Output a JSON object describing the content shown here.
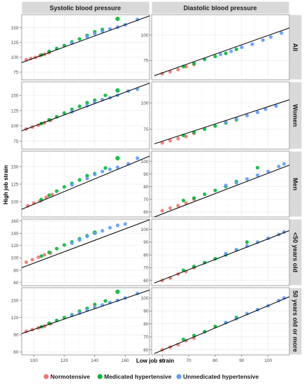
{
  "chart_data": {
    "type": "scatter",
    "xlabel": "Low job strain",
    "ylabel": "High job strain",
    "columns": [
      "Systolic blood pressure",
      "Diastolic blood pressure"
    ],
    "rows": [
      "All",
      "Women",
      "Men",
      "<50 years old",
      "50 years old or more"
    ],
    "x_ticks": [
      [
        100,
        120,
        140,
        160
      ],
      [
        60,
        70,
        80,
        90,
        100
      ]
    ],
    "x_ranges": [
      [
        92,
        176
      ],
      [
        56,
        108
      ]
    ],
    "legend_position": "bottom",
    "legend": [
      {
        "name": "Normotensive",
        "color": "#F8766D"
      },
      {
        "name": "Medicated hypertensive",
        "color": "#00BA38"
      },
      {
        "name": "Unmedicated hypertensive",
        "color": "#619CFF"
      }
    ],
    "panels": [
      {
        "row": 0,
        "col": 0,
        "yticks": [
          75,
          100,
          125,
          150
        ],
        "ylim": [
          62,
          172
        ],
        "line": [
          [
            92,
            91
          ],
          [
            176,
            170
          ]
        ],
        "groups": [
          [
            [
              95,
              96
            ],
            [
              98,
              98
            ],
            [
              101,
              100
            ],
            [
              104,
              103
            ],
            [
              107,
              105
            ],
            [
              110,
              108
            ]
          ],
          [
            [
              105,
              104
            ],
            [
              110,
              110
            ],
            [
              115,
              115
            ],
            [
              120,
              120
            ],
            [
              125,
              126
            ],
            [
              130,
              131
            ],
            [
              135,
              137
            ],
            [
              140,
              143
            ],
            [
              145,
              147
            ],
            [
              155,
              165
            ]
          ],
          [
            [
              125,
              124
            ],
            [
              135,
              135
            ],
            [
              140,
              140
            ],
            [
              145,
              144
            ],
            [
              150,
              148
            ],
            [
              155,
              151
            ],
            [
              160,
              155
            ],
            [
              168,
              164
            ]
          ]
        ]
      },
      {
        "row": 0,
        "col": 1,
        "yticks": [
          75,
          100
        ],
        "ylim": [
          56,
          120
        ],
        "line": [
          [
            57,
            60
          ],
          [
            108,
            107
          ]
        ],
        "groups": [
          [
            [
              60,
              62
            ],
            [
              63,
              64
            ],
            [
              66,
              66
            ],
            [
              69,
              69
            ],
            [
              72,
              71
            ]
          ],
          [
            [
              68,
              69
            ],
            [
              72,
              72
            ],
            [
              76,
              76
            ],
            [
              80,
              79
            ],
            [
              84,
              82
            ],
            [
              88,
              86
            ]
          ],
          [
            [
              82,
              81
            ],
            [
              86,
              84
            ],
            [
              90,
              88
            ],
            [
              94,
              91
            ],
            [
              98,
              95
            ],
            [
              101,
              98
            ],
            [
              105,
              102
            ]
          ]
        ]
      },
      {
        "row": 1,
        "col": 0,
        "yticks": [
          75,
          100,
          125,
          150
        ],
        "ylim": [
          62,
          172
        ],
        "line": [
          [
            92,
            92
          ],
          [
            176,
            170
          ]
        ],
        "groups": [
          [
            [
              95,
              95
            ],
            [
              99,
              98
            ],
            [
              103,
              101
            ],
            [
              107,
              105
            ],
            [
              111,
              109
            ]
          ],
          [
            [
              105,
              104
            ],
            [
              110,
              110
            ],
            [
              115,
              115
            ],
            [
              120,
              121
            ],
            [
              125,
              127
            ],
            [
              130,
              132
            ],
            [
              135,
              138
            ],
            [
              140,
              142
            ],
            [
              147,
              150
            ],
            [
              155,
              158
            ]
          ],
          [
            [
              125,
              123
            ],
            [
              135,
              133
            ],
            [
              140,
              139
            ],
            [
              145,
              143
            ],
            [
              150,
              146
            ],
            [
              155,
              150
            ],
            [
              162,
              157
            ],
            [
              168,
              160
            ]
          ]
        ]
      },
      {
        "row": 1,
        "col": 1,
        "yticks": [
          75,
          100
        ],
        "ylim": [
          56,
          120
        ],
        "line": [
          [
            57,
            61
          ],
          [
            108,
            103
          ]
        ],
        "groups": [
          [
            [
              60,
              62
            ],
            [
              63,
              64
            ],
            [
              66,
              66
            ],
            [
              69,
              68
            ],
            [
              72,
              71
            ]
          ],
          [
            [
              68,
              69
            ],
            [
              72,
              72
            ],
            [
              76,
              75
            ],
            [
              80,
              78
            ],
            [
              84,
              81
            ],
            [
              88,
              84
            ]
          ],
          [
            [
              84,
              82
            ],
            [
              88,
              85
            ],
            [
              92,
              88
            ],
            [
              96,
              91
            ],
            [
              99,
              94
            ],
            [
              103,
              97
            ]
          ]
        ]
      },
      {
        "row": 2,
        "col": 0,
        "yticks": [
          100,
          125,
          150
        ],
        "ylim": [
          78,
          172
        ],
        "line": [
          [
            92,
            89
          ],
          [
            176,
            165
          ]
        ],
        "groups": [
          [
            [
              96,
              94
            ],
            [
              100,
              98
            ],
            [
              104,
              101
            ],
            [
              108,
              106
            ],
            [
              112,
              110
            ]
          ],
          [
            [
              105,
              103
            ],
            [
              110,
              109
            ],
            [
              115,
              115
            ],
            [
              120,
              121
            ],
            [
              125,
              126
            ],
            [
              130,
              131
            ],
            [
              135,
              137
            ],
            [
              140,
              140
            ],
            [
              147,
              148
            ],
            [
              155,
              162
            ]
          ],
          [
            [
              125,
              124
            ],
            [
              135,
              133
            ],
            [
              140,
              139
            ],
            [
              145,
              143
            ],
            [
              150,
              146
            ],
            [
              155,
              149
            ],
            [
              162,
              154
            ],
            [
              168,
              162
            ]
          ]
        ]
      },
      {
        "row": 2,
        "col": 1,
        "yticks": [
          60,
          70,
          80,
          90,
          100
        ],
        "ylim": [
          56,
          108
        ],
        "line": [
          [
            57,
            56
          ],
          [
            108,
            97
          ]
        ],
        "groups": [
          [
            [
              60,
              61
            ],
            [
              63,
              63
            ],
            [
              66,
              65
            ],
            [
              69,
              67
            ],
            [
              72,
              70
            ]
          ],
          [
            [
              68,
              69
            ],
            [
              72,
              71
            ],
            [
              76,
              74
            ],
            [
              80,
              77
            ],
            [
              84,
              80
            ],
            [
              88,
              84
            ],
            [
              96,
              95
            ]
          ],
          [
            [
              84,
              81
            ],
            [
              88,
              83
            ],
            [
              92,
              86
            ],
            [
              96,
              89
            ],
            [
              100,
              92
            ],
            [
              104,
              96
            ],
            [
              106,
              98
            ]
          ]
        ]
      },
      {
        "row": 3,
        "col": 0,
        "yticks": [
          60,
          80,
          100,
          120,
          140,
          160
        ],
        "ylim": [
          55,
          163
        ],
        "line": [
          [
            92,
            84
          ],
          [
            176,
            162
          ]
        ],
        "groups": [
          [
            [
              95,
              93
            ],
            [
              99,
              97
            ],
            [
              103,
              101
            ],
            [
              107,
              105
            ],
            [
              111,
              108
            ]
          ],
          [
            [
              105,
              103
            ],
            [
              110,
              109
            ],
            [
              115,
              115
            ],
            [
              120,
              121
            ],
            [
              125,
              126
            ],
            [
              130,
              131
            ],
            [
              135,
              136
            ],
            [
              140,
              141
            ]
          ],
          [
            [
              125,
              124
            ],
            [
              130,
              129
            ],
            [
              135,
              135
            ],
            [
              140,
              140
            ],
            [
              145,
              144
            ],
            [
              150,
              149
            ],
            [
              155,
              153
            ],
            [
              160,
              155
            ]
          ]
        ]
      },
      {
        "row": 3,
        "col": 1,
        "yticks": [
          60,
          70,
          80,
          90,
          100
        ],
        "ylim": [
          56,
          108
        ],
        "line": [
          [
            57,
            58
          ],
          [
            108,
            99
          ]
        ],
        "groups": [
          [
            [
              60,
              60
            ],
            [
              63,
              62
            ],
            [
              66,
              65
            ],
            [
              69,
              67
            ],
            [
              72,
              70
            ]
          ],
          [
            [
              68,
              68
            ],
            [
              72,
              71
            ],
            [
              76,
              74
            ],
            [
              80,
              77
            ],
            [
              84,
              80
            ],
            [
              88,
              84
            ],
            [
              92,
              90
            ]
          ],
          [
            [
              84,
              81
            ],
            [
              88,
              84
            ],
            [
              92,
              87
            ],
            [
              96,
              90
            ],
            [
              100,
              93
            ],
            [
              104,
              96
            ],
            [
              106,
              98
            ]
          ]
        ]
      },
      {
        "row": 4,
        "col": 0,
        "yticks": [
          60,
          90,
          120,
          150
        ],
        "ylim": [
          55,
          172
        ],
        "line": [
          [
            92,
            92
          ],
          [
            176,
            168
          ]
        ],
        "groups": [
          [
            [
              95,
              96
            ],
            [
              99,
              99
            ],
            [
              103,
              102
            ],
            [
              107,
              105
            ],
            [
              111,
              109
            ]
          ],
          [
            [
              105,
              104
            ],
            [
              110,
              110
            ],
            [
              115,
              115
            ],
            [
              120,
              120
            ],
            [
              125,
              125
            ],
            [
              130,
              131
            ],
            [
              135,
              136
            ],
            [
              140,
              143
            ],
            [
              147,
              149
            ],
            [
              155,
              165
            ]
          ],
          [
            [
              125,
              124
            ],
            [
              130,
              128
            ],
            [
              135,
              133
            ],
            [
              140,
              138
            ],
            [
              145,
              142
            ],
            [
              150,
              146
            ],
            [
              155,
              150
            ],
            [
              160,
              154
            ],
            [
              168,
              162
            ]
          ]
        ]
      },
      {
        "row": 4,
        "col": 1,
        "yticks": [
          60,
          70,
          80,
          90,
          100
        ],
        "ylim": [
          56,
          108
        ],
        "line": [
          [
            57,
            57
          ],
          [
            108,
            101
          ]
        ],
        "groups": [
          [
            [
              60,
              60
            ],
            [
              63,
              62
            ],
            [
              66,
              64
            ],
            [
              69,
              67
            ],
            [
              72,
              69
            ]
          ],
          [
            [
              68,
              68
            ],
            [
              72,
              71
            ],
            [
              76,
              74
            ],
            [
              80,
              78
            ],
            [
              84,
              81
            ],
            [
              88,
              85
            ]
          ],
          [
            [
              84,
              81
            ],
            [
              88,
              84
            ],
            [
              92,
              88
            ],
            [
              96,
              91
            ],
            [
              100,
              94
            ],
            [
              104,
              98
            ],
            [
              106,
              100
            ]
          ]
        ]
      }
    ]
  }
}
